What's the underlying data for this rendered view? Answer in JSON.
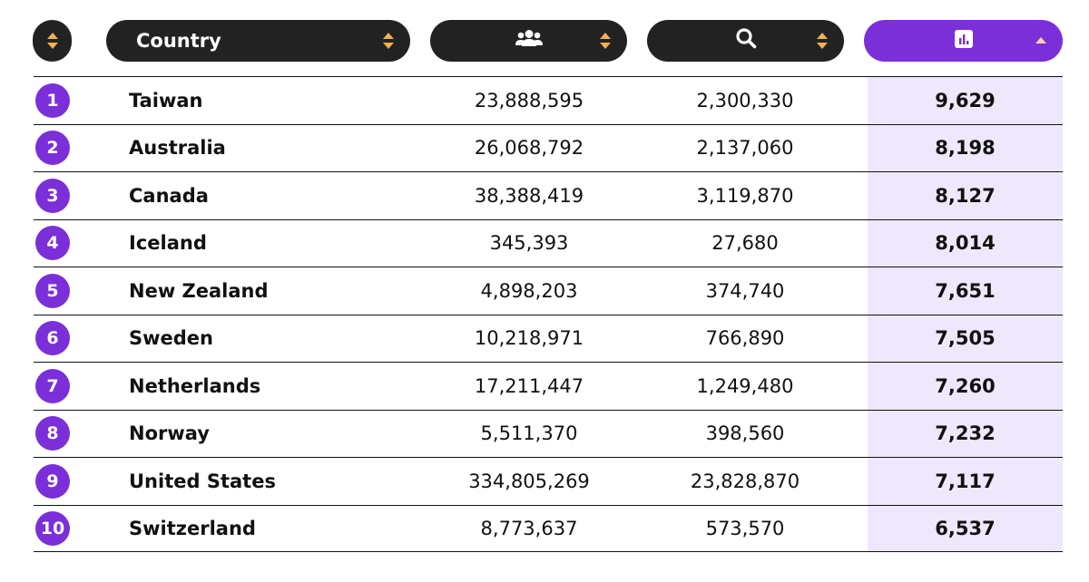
{
  "header": {
    "country_label": "Country",
    "population_icon": "people-icon",
    "searches_icon": "search-icon",
    "score_icon": "bar-chart-icon"
  },
  "colors": {
    "accent": "#7b2fd9",
    "header_dark": "#222222",
    "sort_arrow": "#f0b24a",
    "highlight": "#efe7fb"
  },
  "chart_data": {
    "type": "table",
    "columns": [
      "",
      "Country",
      "",
      "",
      ""
    ],
    "sorted_column": 4,
    "sort_direction": "descending",
    "rows": [
      {
        "rank": "1",
        "country": "Taiwan",
        "population": "23,888,595",
        "searches": "2,300,330",
        "score": "9,629"
      },
      {
        "rank": "2",
        "country": "Australia",
        "population": "26,068,792",
        "searches": "2,137,060",
        "score": "8,198"
      },
      {
        "rank": "3",
        "country": "Canada",
        "population": "38,388,419",
        "searches": "3,119,870",
        "score": "8,127"
      },
      {
        "rank": "4",
        "country": "Iceland",
        "population": "345,393",
        "searches": "27,680",
        "score": "8,014"
      },
      {
        "rank": "5",
        "country": "New Zealand",
        "population": "4,898,203",
        "searches": "374,740",
        "score": "7,651"
      },
      {
        "rank": "6",
        "country": "Sweden",
        "population": "10,218,971",
        "searches": "766,890",
        "score": "7,505"
      },
      {
        "rank": "7",
        "country": "Netherlands",
        "population": "17,211,447",
        "searches": "1,249,480",
        "score": "7,260"
      },
      {
        "rank": "8",
        "country": "Norway",
        "population": "5,511,370",
        "searches": "398,560",
        "score": "7,232"
      },
      {
        "rank": "9",
        "country": "United States",
        "population": "334,805,269",
        "searches": "23,828,870",
        "score": "7,117"
      },
      {
        "rank": "10",
        "country": "Switzerland",
        "population": "8,773,637",
        "searches": "573,570",
        "score": "6,537"
      }
    ]
  }
}
